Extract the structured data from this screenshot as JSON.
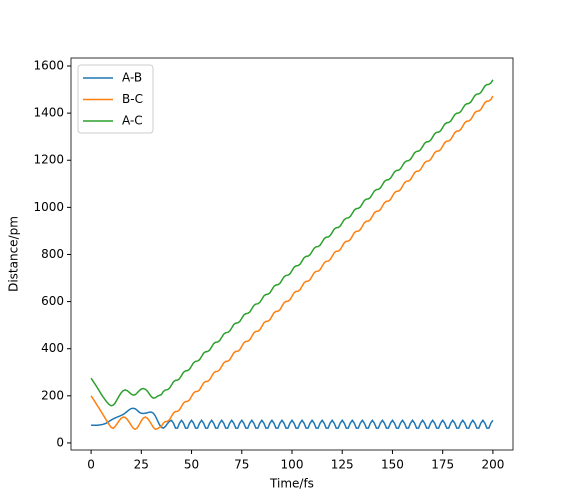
{
  "chart_data": {
    "type": "line",
    "xlabel": "Time/fs",
    "ylabel": "Distance/pm",
    "x": [
      0,
      1,
      2,
      3,
      4,
      5,
      6,
      7,
      8,
      9,
      10,
      11,
      12,
      13,
      14,
      15,
      16,
      17,
      18,
      19,
      20,
      21,
      22,
      23,
      24,
      25,
      26,
      27,
      28,
      29,
      30,
      31,
      32,
      33,
      34,
      35,
      36,
      37,
      38,
      39,
      40,
      41,
      42,
      43,
      44,
      45,
      46,
      47,
      48,
      49,
      50,
      51,
      52,
      53,
      54,
      55,
      56,
      57,
      58,
      59,
      60,
      61,
      62,
      63,
      64,
      65,
      66,
      67,
      68,
      69,
      70,
      71,
      72,
      73,
      74,
      75,
      76,
      77,
      78,
      79,
      80,
      81,
      82,
      83,
      84,
      85,
      86,
      87,
      88,
      89,
      90,
      91,
      92,
      93,
      94,
      95,
      96,
      97,
      98,
      99,
      100,
      101,
      102,
      103,
      104,
      105,
      106,
      107,
      108,
      109,
      110,
      111,
      112,
      113,
      114,
      115,
      116,
      117,
      118,
      119,
      120,
      121,
      122,
      123,
      124,
      125,
      126,
      127,
      128,
      129,
      130,
      131,
      132,
      133,
      134,
      135,
      136,
      137,
      138,
      139,
      140,
      141,
      142,
      143,
      144,
      145,
      146,
      147,
      148,
      149,
      150,
      151,
      152,
      153,
      154,
      155,
      156,
      157,
      158,
      159,
      160,
      161,
      162,
      163,
      164,
      165,
      166,
      167,
      168,
      169,
      170,
      171,
      172,
      173,
      174,
      175,
      176,
      177,
      178,
      179,
      180,
      181,
      182,
      183,
      184,
      185,
      186,
      187,
      188,
      189,
      190,
      191,
      192,
      193,
      194,
      195,
      196,
      197,
      198,
      199,
      200
    ],
    "series": [
      {
        "name": "A-B",
        "color": "#1f77b4",
        "values": [
          75,
          75,
          75,
          75,
          76,
          77,
          79,
          82,
          86,
          92,
          97,
          102,
          106,
          110,
          113,
          117,
          121,
          127,
          134,
          141,
          146,
          147,
          145,
          138,
          130,
          126,
          125,
          126,
          128,
          131,
          131,
          126,
          114,
          96,
          78,
          66,
          63,
          70,
          82,
          92,
          96,
          84,
          63,
          63,
          84,
          96,
          84,
          63,
          63,
          84,
          96,
          84,
          63,
          63,
          84,
          96,
          84,
          63,
          63,
          84,
          96,
          84,
          63,
          63,
          84,
          96,
          84,
          63,
          63,
          84,
          96,
          84,
          63,
          63,
          84,
          96,
          84,
          63,
          63,
          84,
          96,
          84,
          63,
          63,
          84,
          96,
          84,
          63,
          63,
          84,
          96,
          84,
          63,
          63,
          84,
          96,
          84,
          63,
          63,
          84,
          96,
          84,
          63,
          63,
          84,
          96,
          84,
          63,
          63,
          84,
          96,
          84,
          63,
          63,
          84,
          96,
          84,
          63,
          63,
          84,
          96,
          84,
          63,
          63,
          84,
          96,
          84,
          63,
          63,
          84,
          96,
          84,
          63,
          63,
          84,
          96,
          84,
          63,
          63,
          84,
          96,
          84,
          63,
          63,
          84,
          96,
          84,
          63,
          63,
          84,
          96,
          84,
          63,
          63,
          84,
          96,
          84,
          63,
          63,
          84,
          96,
          84,
          63,
          63,
          84,
          96,
          84,
          63,
          63,
          84,
          96,
          84,
          63,
          63,
          84,
          96,
          84,
          63,
          63,
          84,
          96,
          84,
          63,
          63,
          84,
          96,
          84,
          63,
          63,
          84,
          96,
          84,
          63,
          63,
          84,
          96,
          84,
          63,
          63,
          84,
          96
        ]
      },
      {
        "name": "B-C",
        "color": "#ff7f0e",
        "values": [
          200,
          187,
          174,
          160,
          147,
          133,
          119,
          105,
          91,
          78,
          66,
          62,
          70,
          82,
          95,
          105,
          110,
          108,
          100,
          88,
          74,
          62,
          58,
          64,
          78,
          94,
          106,
          110,
          105,
          94,
          80,
          66,
          58,
          60,
          66,
          70,
          84.5,
          91,
          91.5,
          98,
          112.5,
          127,
          133.5,
          134,
          140.5,
          155,
          169.5,
          176,
          176.5,
          183,
          197.5,
          212,
          218.5,
          219,
          225.5,
          240,
          254.5,
          261,
          261.5,
          268,
          282.5,
          297,
          303.5,
          304,
          310.5,
          325,
          339.5,
          346,
          346.5,
          353,
          367.5,
          382,
          388.5,
          389,
          395.5,
          410,
          424.5,
          431,
          431.5,
          438,
          452.5,
          467,
          473.5,
          474,
          480.5,
          495,
          509.5,
          516,
          516.5,
          523,
          537.5,
          552,
          558.5,
          559,
          565.5,
          580,
          594.5,
          601,
          601.5,
          608,
          622.5,
          637,
          643.5,
          644,
          650.5,
          665,
          679.5,
          686,
          686.5,
          693,
          707.5,
          722,
          728.5,
          729,
          735.5,
          750,
          764.5,
          771,
          771.5,
          778,
          792.5,
          807,
          813.5,
          814,
          820.5,
          835,
          849.5,
          856,
          856.5,
          863,
          877.5,
          892,
          898.5,
          899,
          905.5,
          920,
          934.5,
          941,
          941.5,
          948,
          962.5,
          977,
          983.5,
          984,
          990.5,
          1005,
          1019.5,
          1026,
          1026.5,
          1033,
          1047.5,
          1062,
          1068.5,
          1069,
          1075.5,
          1090,
          1104.5,
          1111,
          1111.5,
          1118,
          1132.5,
          1147,
          1153.5,
          1154,
          1160.5,
          1175,
          1189.5,
          1196,
          1196.5,
          1203,
          1217.5,
          1232,
          1238.5,
          1239,
          1245.5,
          1260,
          1274.5,
          1281,
          1281.5,
          1288,
          1302.5,
          1317,
          1323.5,
          1324,
          1330.5,
          1345,
          1359.5,
          1366,
          1366.5,
          1373,
          1387.5,
          1402,
          1408.5,
          1409,
          1415.5,
          1430,
          1444.5,
          1451,
          1451.5,
          1458,
          1472.5
        ]
      },
      {
        "name": "A-C",
        "color": "#2ca02c",
        "values": [
          275,
          262,
          249,
          236,
          222,
          208,
          195,
          183,
          172,
          163,
          158,
          160,
          170,
          185,
          200,
          213,
          222,
          225,
          222,
          215,
          207,
          203,
          205,
          213,
          222,
          229,
          231,
          228,
          220,
          208,
          196,
          190,
          192,
          198,
          202,
          205,
          219,
          225,
          226,
          232,
          245.5,
          259.5,
          265.5,
          266.5,
          272.5,
          286,
          300,
          306,
          307,
          313,
          326.5,
          340.5,
          346.5,
          347.5,
          353.5,
          367,
          381,
          387,
          388,
          394,
          407.5,
          421.5,
          427.5,
          428.5,
          434.5,
          448,
          462,
          468,
          469,
          475,
          488.5,
          502.5,
          508.5,
          509.5,
          515.5,
          529,
          543,
          549,
          550,
          556,
          569.5,
          583.5,
          589.5,
          590.5,
          596.5,
          610,
          624,
          630,
          631,
          637,
          650.5,
          664.5,
          670.5,
          671.5,
          677.5,
          691,
          705,
          711,
          712,
          718,
          731.5,
          745.5,
          751.5,
          752.5,
          758.5,
          772,
          786,
          792,
          793,
          799,
          812.5,
          826.5,
          832.5,
          833.5,
          839.5,
          853,
          867,
          873,
          874,
          880,
          893.5,
          907.5,
          913.5,
          914.5,
          920.5,
          934,
          948,
          954,
          955,
          961,
          974.5,
          988.5,
          994.5,
          995.5,
          1001.5,
          1015,
          1029,
          1035,
          1036,
          1042,
          1055.5,
          1069.5,
          1075.5,
          1076.5,
          1082.5,
          1096,
          1110,
          1116,
          1117,
          1123,
          1136.5,
          1150.5,
          1156.5,
          1157.5,
          1163.5,
          1177,
          1191,
          1197,
          1198,
          1204,
          1217.5,
          1231.5,
          1237.5,
          1238.5,
          1244.5,
          1258,
          1272,
          1278,
          1279,
          1285,
          1298.5,
          1312.5,
          1318.5,
          1319.5,
          1325.5,
          1339,
          1353,
          1359,
          1360,
          1366,
          1379.5,
          1393.5,
          1399.5,
          1400.5,
          1406.5,
          1420,
          1434,
          1440,
          1441,
          1447,
          1460.5,
          1474.5,
          1480.5,
          1481.5,
          1487.5,
          1501,
          1515,
          1521,
          1522,
          1528,
          1541.5
        ]
      }
    ],
    "xlim": [
      -10,
      210
    ],
    "xticks": [
      0,
      25,
      50,
      75,
      100,
      125,
      150,
      175,
      200
    ],
    "ylim": [
      -30,
      1634
    ],
    "yticks": [
      0,
      200,
      400,
      600,
      800,
      1000,
      1200,
      1400,
      1600
    ],
    "legend": "upper left",
    "grid": false
  }
}
